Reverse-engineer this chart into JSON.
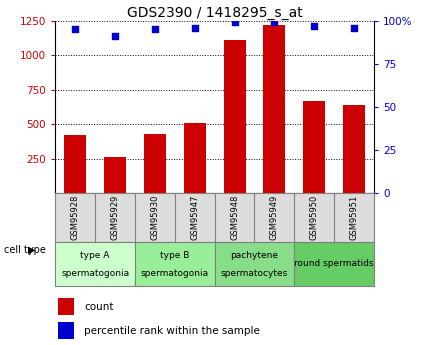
{
  "title": "GDS2390 / 1418295_s_at",
  "samples": [
    "GSM95928",
    "GSM95929",
    "GSM95930",
    "GSM95947",
    "GSM95948",
    "GSM95949",
    "GSM95950",
    "GSM95951"
  ],
  "counts": [
    420,
    260,
    430,
    510,
    1110,
    1220,
    670,
    640
  ],
  "percentile_ranks": [
    95,
    91,
    95,
    96,
    99,
    99,
    97,
    96
  ],
  "ylim_left": [
    0,
    1250
  ],
  "ylim_right": [
    0,
    100
  ],
  "yticks_left": [
    250,
    500,
    750,
    1000,
    1250
  ],
  "yticks_right": [
    0,
    25,
    50,
    75,
    100
  ],
  "cell_types": [
    {
      "label": "type A\nspermatogonia",
      "start": 0,
      "end": 2,
      "color": "#ccffcc"
    },
    {
      "label": "type B\nspermatogonia",
      "start": 2,
      "end": 4,
      "color": "#99ee99"
    },
    {
      "label": "pachytene\nspermatocytes",
      "start": 4,
      "end": 6,
      "color": "#88dd88"
    },
    {
      "label": "round spermatids",
      "start": 6,
      "end": 8,
      "color": "#66cc66"
    }
  ],
  "bar_color": "#cc0000",
  "dot_color": "#0000cc",
  "legend_count_color": "#cc0000",
  "legend_dot_color": "#0000cc",
  "legend_count_label": "count",
  "legend_dot_label": "percentile rank within the sample",
  "cell_type_label": "cell type",
  "grid_color": "black",
  "bar_width": 0.55,
  "ylabel_left_color": "#cc0000",
  "ylabel_right_color": "#0000cc",
  "title_fontsize": 10,
  "tick_fontsize": 7.5,
  "sample_fontsize": 6,
  "cell_fontsize": 6.5,
  "legend_fontsize": 7.5
}
